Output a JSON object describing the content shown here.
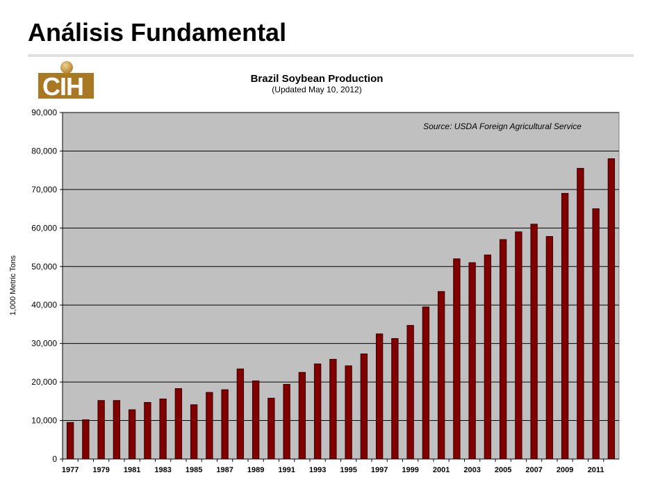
{
  "slide": {
    "title": "Análisis Fundamental",
    "logo_text": "CIH"
  },
  "chart_data": {
    "type": "bar",
    "title": "Brazil Soybean Production",
    "subtitle": "(Updated May 10, 2012)",
    "annotation": "Source: USDA Foreign Agricultural Service",
    "xlabel": "",
    "ylabel": "1,000 Metric Tons",
    "ylim": [
      0,
      90000
    ],
    "yticks": [
      "0",
      "10,000",
      "20,000",
      "30,000",
      "40,000",
      "50,000",
      "60,000",
      "70,000",
      "80,000",
      "90,000"
    ],
    "x_tick_labels": [
      "1977",
      "1979",
      "1981",
      "1983",
      "1985",
      "1987",
      "1989",
      "1991",
      "1993",
      "1995",
      "1997",
      "1999",
      "2001",
      "2003",
      "2005",
      "2007",
      "2009",
      "2011"
    ],
    "categories": [
      "1977",
      "1978",
      "1979",
      "1980",
      "1981",
      "1982",
      "1983",
      "1984",
      "1985",
      "1986",
      "1987",
      "1988",
      "1989",
      "1990",
      "1991",
      "1992",
      "1993",
      "1994",
      "1995",
      "1996",
      "1997",
      "1998",
      "1999",
      "2000",
      "2001",
      "2002",
      "2003",
      "2004",
      "2005",
      "2006",
      "2007",
      "2008",
      "2009",
      "2010",
      "2011",
      "2012"
    ],
    "values": [
      9500,
      10200,
      15200,
      15200,
      12800,
      14700,
      15600,
      18300,
      14100,
      17300,
      18000,
      23400,
      20300,
      15800,
      19400,
      22500,
      24700,
      25900,
      24200,
      27300,
      32500,
      31300,
      34700,
      39500,
      43500,
      52000,
      51000,
      53000,
      57000,
      59000,
      61000,
      57800,
      69000,
      75500,
      65000,
      78000
    ],
    "grid": true,
    "legend": "none",
    "colors": {
      "bar_fill": "#800000",
      "bar_stroke": "#3a0000",
      "plot_background": "#c0c0c0",
      "gridline": "#000000"
    }
  }
}
